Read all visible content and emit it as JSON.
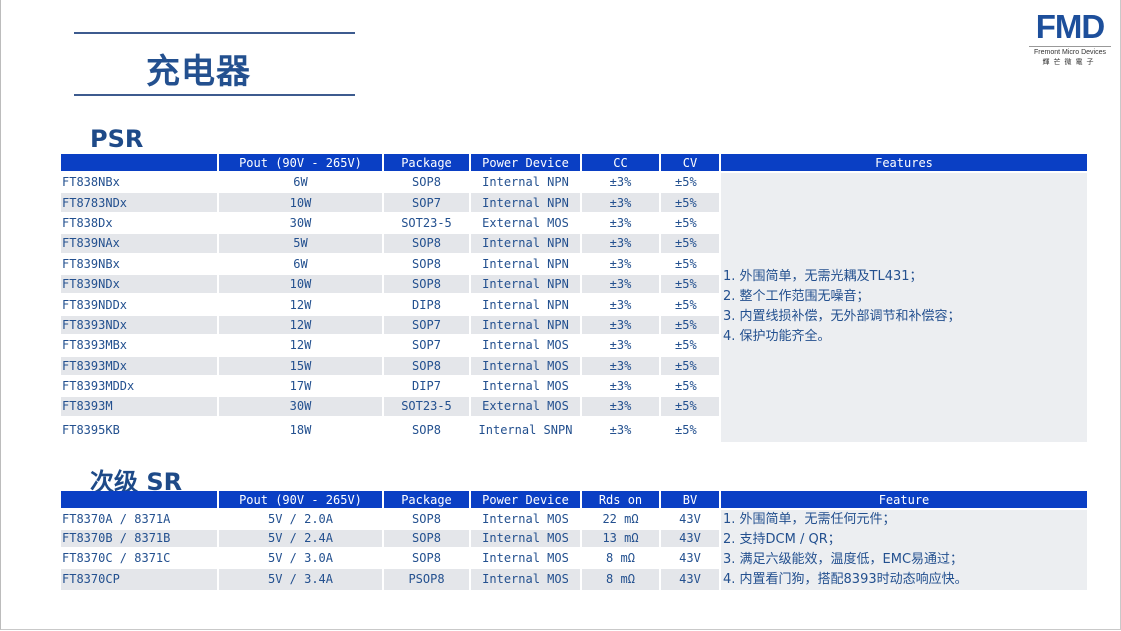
{
  "page": {
    "title": "充电器",
    "logo": {
      "mark": "FMD",
      "line1": "Fremont Micro Devices",
      "line2": "輝芒微電子"
    }
  },
  "psr": {
    "section_title": "PSR",
    "headers": [
      "",
      "Pout (90V - 265V)",
      "Package",
      "Power Device",
      "CC",
      "CV",
      "Features"
    ],
    "rows": [
      [
        "FT838NBx",
        "6W",
        "SOP8",
        "Internal NPN",
        "±3%",
        "±5%"
      ],
      [
        "FT8783NDx",
        "10W",
        "SOP7",
        "Internal NPN",
        "±3%",
        "±5%"
      ],
      [
        "FT838Dx",
        "30W",
        "SOT23-5",
        "External MOS",
        "±3%",
        "±5%"
      ],
      [
        "FT839NAx",
        "5W",
        "SOP8",
        "Internal NPN",
        "±3%",
        "±5%"
      ],
      [
        "FT839NBx",
        "6W",
        "SOP8",
        "Internal NPN",
        "±3%",
        "±5%"
      ],
      [
        "FT839NDx",
        "10W",
        "SOP8",
        "Internal NPN",
        "±3%",
        "±5%"
      ],
      [
        "FT839NDDx",
        "12W",
        "DIP8",
        "Internal NPN",
        "±3%",
        "±5%"
      ],
      [
        "FT8393NDx",
        "12W",
        "SOP7",
        "Internal NPN",
        "±3%",
        "±5%"
      ],
      [
        "FT8393MBx",
        "12W",
        "SOP7",
        "Internal MOS",
        "±3%",
        "±5%"
      ],
      [
        "FT8393MDx",
        "15W",
        "SOP8",
        "Internal MOS",
        "±3%",
        "±5%"
      ],
      [
        "FT8393MDDx",
        "17W",
        "DIP7",
        "Internal MOS",
        "±3%",
        "±5%"
      ],
      [
        "FT8393M",
        "30W",
        "SOT23-5",
        "External MOS",
        "±3%",
        "±5%"
      ],
      [
        "FT8395KB",
        "18W",
        "SOP8",
        "Internal SNPN",
        "±3%",
        "±5%"
      ]
    ],
    "features": [
      "1. 外围简单，无需光耦及TL431；",
      "2. 整个工作范围无噪音；",
      "3. 内置线损补偿，无外部调节和补偿容；",
      "4. 保护功能齐全。"
    ]
  },
  "sr": {
    "section_title": "次级 SR",
    "headers": [
      "",
      "Pout (90V - 265V)",
      "Package",
      "Power Device",
      "Rds on",
      "BV",
      "Feature"
    ],
    "rows": [
      [
        "FT8370A / 8371A",
        "5V / 2.0A",
        "SOP8",
        "Internal MOS",
        "22 mΩ",
        "43V"
      ],
      [
        "FT8370B / 8371B",
        "5V / 2.4A",
        "SOP8",
        "Internal MOS",
        "13 mΩ",
        "43V"
      ],
      [
        "FT8370C / 8371C",
        "5V / 3.0A",
        "SOP8",
        "Internal MOS",
        "8 mΩ",
        "43V"
      ],
      [
        "FT8370CP",
        "5V / 3.4A",
        "PSOP8",
        "Internal MOS",
        "8 mΩ",
        "43V"
      ]
    ],
    "features": [
      "1. 外围简单，无需任何元件；",
      "2. 支持DCM / QR；",
      "3. 满足六级能效，温度低，EMC易通过；",
      "4. 内置看门狗，搭配8393时动态响应快。"
    ]
  },
  "colors": {
    "header_bg": "#0a3fc4",
    "text": "#23508f",
    "row_alt": "#e4e6ea"
  }
}
